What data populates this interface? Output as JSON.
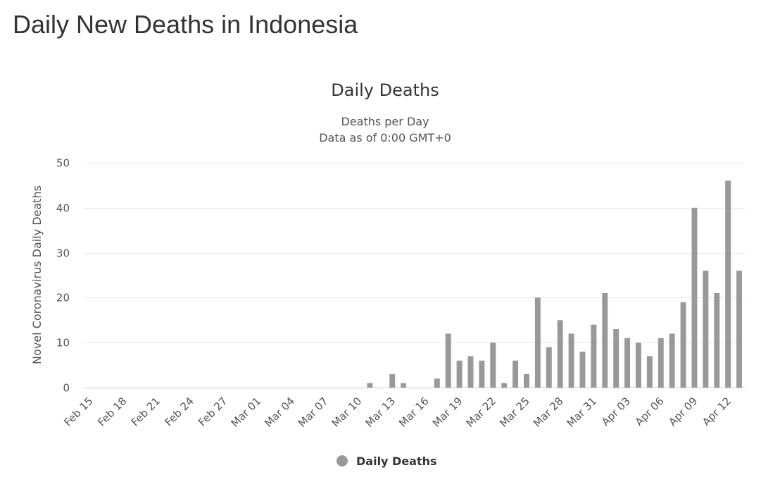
{
  "page": {
    "title": "Daily New Deaths in Indonesia"
  },
  "colors": {
    "bar": "#999999",
    "grid": "#e6e6e6",
    "axis": "#cccccc"
  },
  "chart_data": {
    "type": "bar",
    "title": "Daily Deaths",
    "subtitle_lines": [
      "Deaths per Day",
      "Data as of 0:00 GMT+0"
    ],
    "xlabel": "",
    "ylabel": "Novel Coronavirus Daily Deaths",
    "ylim": [
      0,
      50
    ],
    "yticks": [
      0,
      10,
      20,
      30,
      40,
      50
    ],
    "grid": true,
    "legend_position": "bottom-center",
    "categories": [
      "Feb 15",
      "Feb 16",
      "Feb 17",
      "Feb 18",
      "Feb 19",
      "Feb 20",
      "Feb 21",
      "Feb 22",
      "Feb 23",
      "Feb 24",
      "Feb 25",
      "Feb 26",
      "Feb 27",
      "Feb 28",
      "Feb 29",
      "Mar 01",
      "Mar 02",
      "Mar 03",
      "Mar 04",
      "Mar 05",
      "Mar 06",
      "Mar 07",
      "Mar 08",
      "Mar 09",
      "Mar 10",
      "Mar 11",
      "Mar 12",
      "Mar 13",
      "Mar 14",
      "Mar 15",
      "Mar 16",
      "Mar 17",
      "Mar 18",
      "Mar 19",
      "Mar 20",
      "Mar 21",
      "Mar 22",
      "Mar 23",
      "Mar 24",
      "Mar 25",
      "Mar 26",
      "Mar 27",
      "Mar 28",
      "Mar 29",
      "Mar 30",
      "Mar 31",
      "Apr 01",
      "Apr 02",
      "Apr 03",
      "Apr 04",
      "Apr 05",
      "Apr 06",
      "Apr 07",
      "Apr 08",
      "Apr 09",
      "Apr 10",
      "Apr 11",
      "Apr 12",
      "Apr 13"
    ],
    "xtick_labels": [
      "Feb 15",
      "Feb 18",
      "Feb 21",
      "Feb 24",
      "Feb 27",
      "Mar 01",
      "Mar 04",
      "Mar 07",
      "Mar 10",
      "Mar 13",
      "Mar 16",
      "Mar 19",
      "Mar 22",
      "Mar 25",
      "Mar 28",
      "Mar 31",
      "Apr 03",
      "Apr 06",
      "Apr 09",
      "Apr 12"
    ],
    "series": [
      {
        "name": "Daily Deaths",
        "values": [
          0,
          0,
          0,
          0,
          0,
          0,
          0,
          0,
          0,
          0,
          0,
          0,
          0,
          0,
          0,
          0,
          0,
          0,
          0,
          0,
          0,
          0,
          0,
          0,
          0,
          1,
          0,
          3,
          1,
          0,
          0,
          2,
          12,
          6,
          7,
          6,
          10,
          1,
          6,
          3,
          20,
          9,
          15,
          12,
          8,
          14,
          21,
          13,
          11,
          10,
          7,
          11,
          12,
          19,
          40,
          26,
          21,
          46,
          26
        ]
      }
    ]
  }
}
